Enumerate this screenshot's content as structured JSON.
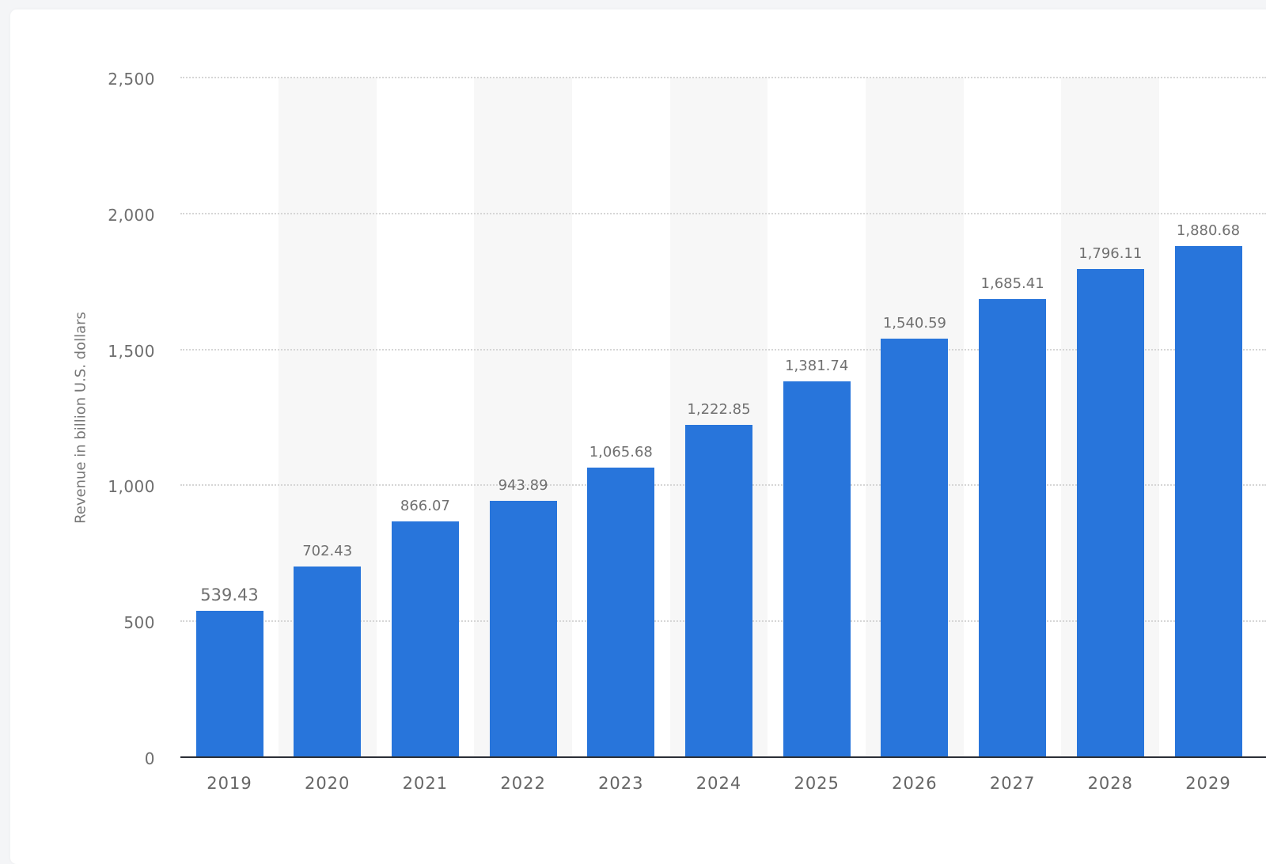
{
  "chart_data": {
    "type": "bar",
    "title": "",
    "xlabel": "",
    "ylabel": "Revenue in billion U.S. dollars",
    "categories": [
      "2019",
      "2020",
      "2021",
      "2022",
      "2023",
      "2024",
      "2025",
      "2026",
      "2027",
      "2028",
      "2029"
    ],
    "values": [
      539.43,
      702.43,
      866.07,
      943.89,
      1065.68,
      1222.85,
      1381.74,
      1540.59,
      1685.41,
      1796.11,
      1880.68
    ],
    "value_labels": [
      "539.43",
      "702.43",
      "866.07",
      "943.89",
      "1,065.68",
      "1,222.85",
      "1,381.74",
      "1,540.59",
      "1,685.41",
      "1,796.11",
      "1,880.68"
    ],
    "ylim": [
      0,
      2500
    ],
    "yticks": [
      0,
      500,
      1000,
      1500,
      2000,
      2500
    ],
    "ytick_labels": [
      "0",
      "500",
      "1,000",
      "1,500",
      "2,000",
      "2,500"
    ],
    "grid": "horizontal-dotted",
    "legend": "none",
    "bar_color": "#2875DB"
  }
}
